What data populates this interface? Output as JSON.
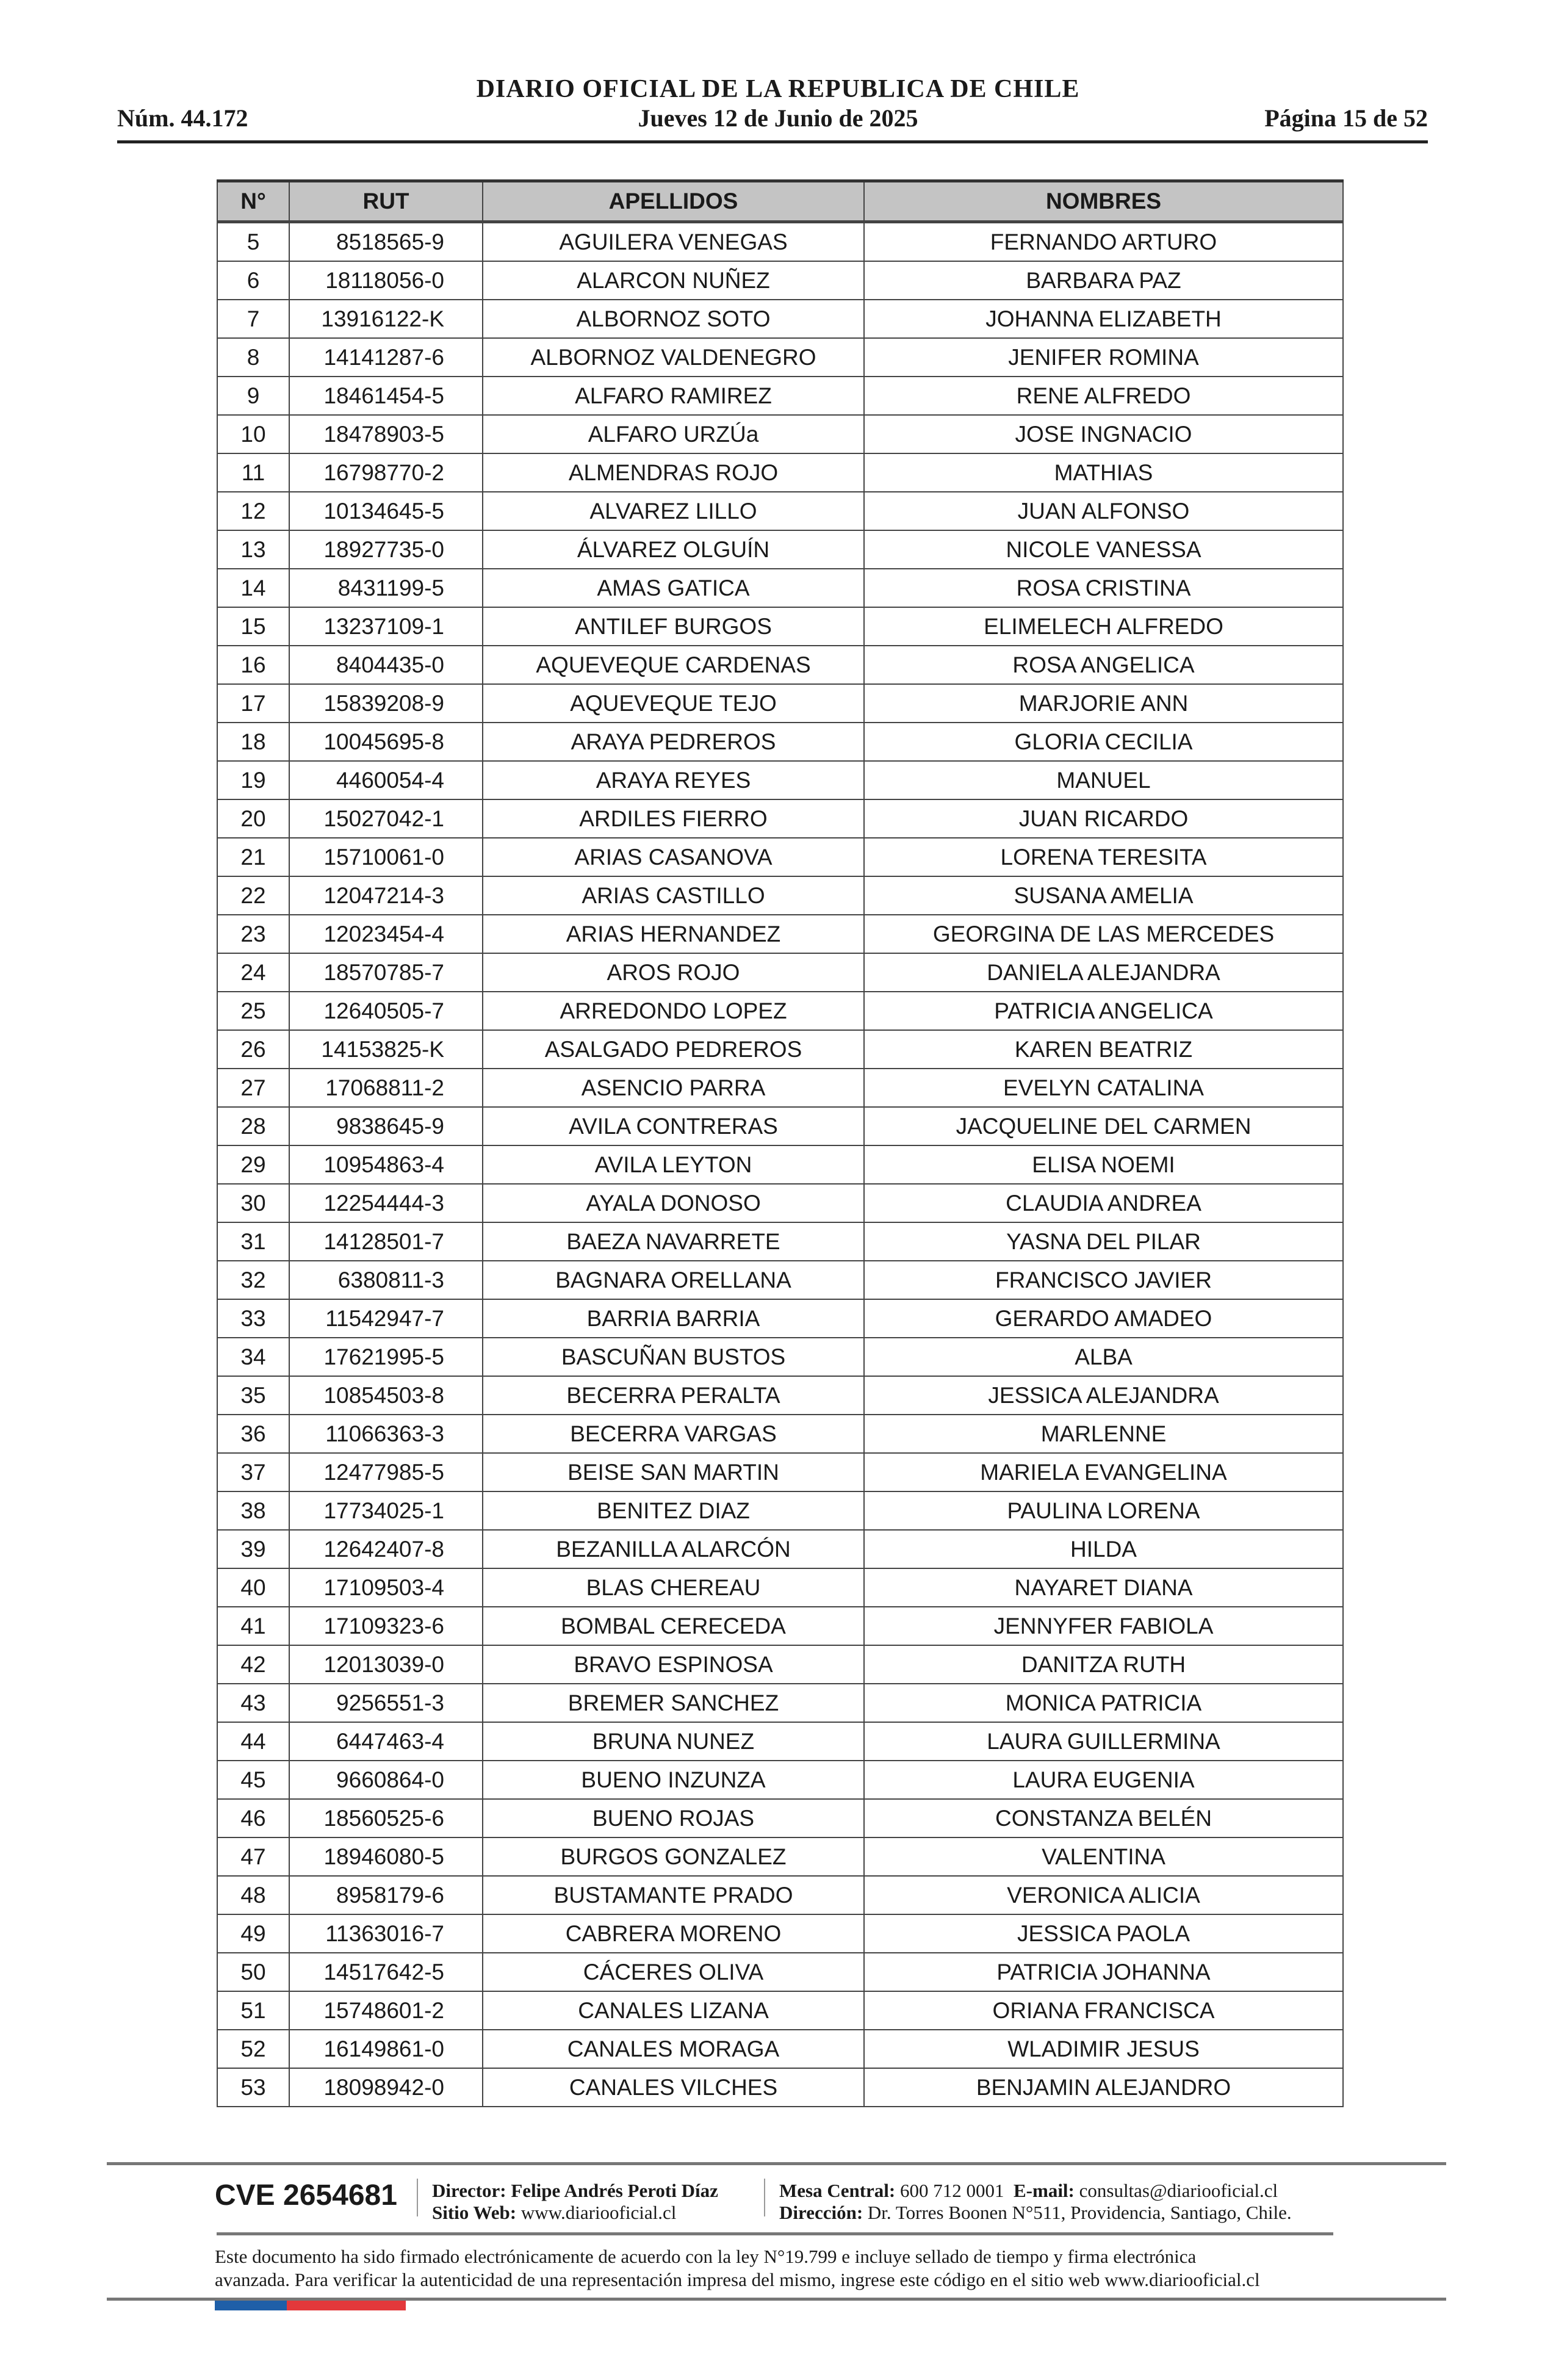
{
  "header": {
    "title": "DIARIO OFICIAL DE LA REPUBLICA DE CHILE",
    "issue_number": "Núm. 44.172",
    "date": "Jueves 12 de Junio de 2025",
    "page": "Página 15 de 52"
  },
  "table": {
    "columns": [
      "N°",
      "RUT",
      "APELLIDOS",
      "NOMBRES"
    ],
    "rows": [
      [
        "5",
        "8518565-9",
        "AGUILERA VENEGAS",
        "FERNANDO ARTURO"
      ],
      [
        "6",
        "18118056-0",
        "ALARCON NUÑEZ",
        "BARBARA PAZ"
      ],
      [
        "7",
        "13916122-K",
        "ALBORNOZ SOTO",
        "JOHANNA ELIZABETH"
      ],
      [
        "8",
        "14141287-6",
        "ALBORNOZ VALDENEGRO",
        "JENIFER ROMINA"
      ],
      [
        "9",
        "18461454-5",
        "ALFARO RAMIREZ",
        "RENE ALFREDO"
      ],
      [
        "10",
        "18478903-5",
        "ALFARO URZÚa",
        "JOSE INGNACIO"
      ],
      [
        "11",
        "16798770-2",
        "ALMENDRAS ROJO",
        "MATHIAS"
      ],
      [
        "12",
        "10134645-5",
        "ALVAREZ LILLO",
        "JUAN ALFONSO"
      ],
      [
        "13",
        "18927735-0",
        "ÁLVAREZ OLGUÍN",
        "NICOLE VANESSA"
      ],
      [
        "14",
        "8431199-5",
        "AMAS GATICA",
        "ROSA CRISTINA"
      ],
      [
        "15",
        "13237109-1",
        "ANTILEF BURGOS",
        "ELIMELECH ALFREDO"
      ],
      [
        "16",
        "8404435-0",
        "AQUEVEQUE CARDENAS",
        "ROSA ANGELICA"
      ],
      [
        "17",
        "15839208-9",
        "AQUEVEQUE TEJO",
        "MARJORIE ANN"
      ],
      [
        "18",
        "10045695-8",
        "ARAYA PEDREROS",
        "GLORIA CECILIA"
      ],
      [
        "19",
        "4460054-4",
        "ARAYA REYES",
        "MANUEL"
      ],
      [
        "20",
        "15027042-1",
        "ARDILES FIERRO",
        "JUAN RICARDO"
      ],
      [
        "21",
        "15710061-0",
        "ARIAS CASANOVA",
        "LORENA TERESITA"
      ],
      [
        "22",
        "12047214-3",
        "ARIAS CASTILLO",
        "SUSANA AMELIA"
      ],
      [
        "23",
        "12023454-4",
        "ARIAS HERNANDEZ",
        "GEORGINA DE LAS MERCEDES"
      ],
      [
        "24",
        "18570785-7",
        "AROS ROJO",
        "DANIELA ALEJANDRA"
      ],
      [
        "25",
        "12640505-7",
        "ARREDONDO LOPEZ",
        "PATRICIA ANGELICA"
      ],
      [
        "26",
        "14153825-K",
        "ASALGADO PEDREROS",
        "KAREN BEATRIZ"
      ],
      [
        "27",
        "17068811-2",
        "ASENCIO PARRA",
        "EVELYN CATALINA"
      ],
      [
        "28",
        "9838645-9",
        "AVILA CONTRERAS",
        "JACQUELINE DEL CARMEN"
      ],
      [
        "29",
        "10954863-4",
        "AVILA LEYTON",
        "ELISA NOEMI"
      ],
      [
        "30",
        "12254444-3",
        "AYALA DONOSO",
        "CLAUDIA ANDREA"
      ],
      [
        "31",
        "14128501-7",
        "BAEZA NAVARRETE",
        "YASNA DEL PILAR"
      ],
      [
        "32",
        "6380811-3",
        "BAGNARA ORELLANA",
        "FRANCISCO JAVIER"
      ],
      [
        "33",
        "11542947-7",
        "BARRIA BARRIA",
        "GERARDO AMADEO"
      ],
      [
        "34",
        "17621995-5",
        "BASCUÑAN BUSTOS",
        "ALBA"
      ],
      [
        "35",
        "10854503-8",
        "BECERRA PERALTA",
        "JESSICA ALEJANDRA"
      ],
      [
        "36",
        "11066363-3",
        "BECERRA VARGAS",
        "MARLENNE"
      ],
      [
        "37",
        "12477985-5",
        "BEISE SAN MARTIN",
        "MARIELA EVANGELINA"
      ],
      [
        "38",
        "17734025-1",
        "BENITEZ DIAZ",
        "PAULINA LORENA"
      ],
      [
        "39",
        "12642407-8",
        "BEZANILLA ALARCÓN",
        "HILDA"
      ],
      [
        "40",
        "17109503-4",
        "BLAS CHEREAU",
        "NAYARET DIANA"
      ],
      [
        "41",
        "17109323-6",
        "BOMBAL CERECEDA",
        "JENNYFER FABIOLA"
      ],
      [
        "42",
        "12013039-0",
        "BRAVO ESPINOSA",
        "DANITZA RUTH"
      ],
      [
        "43",
        "9256551-3",
        "BREMER SANCHEZ",
        "MONICA PATRICIA"
      ],
      [
        "44",
        "6447463-4",
        "BRUNA NUNEZ",
        "LAURA GUILLERMINA"
      ],
      [
        "45",
        "9660864-0",
        "BUENO INZUNZA",
        "LAURA EUGENIA"
      ],
      [
        "46",
        "18560525-6",
        "BUENO ROJAS",
        "CONSTANZA BELÉN"
      ],
      [
        "47",
        "18946080-5",
        "BURGOS GONZALEZ",
        "VALENTINA"
      ],
      [
        "48",
        "8958179-6",
        "BUSTAMANTE PRADO",
        "VERONICA ALICIA"
      ],
      [
        "49",
        "11363016-7",
        "CABRERA MORENO",
        "JESSICA PAOLA"
      ],
      [
        "50",
        "14517642-5",
        "CÁCERES OLIVA",
        "PATRICIA JOHANNA"
      ],
      [
        "51",
        "15748601-2",
        "CANALES LIZANA",
        "ORIANA FRANCISCA"
      ],
      [
        "52",
        "16149861-0",
        "CANALES MORAGA",
        "WLADIMIR JESUS"
      ],
      [
        "53",
        "18098942-0",
        "CANALES VILCHES",
        "BENJAMIN ALEJANDRO"
      ]
    ]
  },
  "footer": {
    "cve": "CVE 2654681",
    "director_label": "Director:",
    "director": "Felipe Andrés Peroti Díaz",
    "website_label": "Sitio Web:",
    "website": "www.diariooficial.cl",
    "phone_label": "Mesa Central:",
    "phone": "600 712 0001",
    "email_label": "E-mail:",
    "email": "consultas@diariooficial.cl",
    "address_label": "Dirección:",
    "address": "Dr. Torres Boonen N°511, Providencia, Santiago, Chile.",
    "legal_line1": "Este documento ha sido firmado electrónicamente de acuerdo con la ley N°19.799 e incluye sellado de tiempo y firma electrónica",
    "legal_line2": "avanzada. Para verificar la autenticidad de una representación impresa del mismo, ingrese este código en el sitio web www.diariooficial.cl",
    "flag_colors": [
      "#1f5fa8",
      "#e3383b"
    ]
  }
}
